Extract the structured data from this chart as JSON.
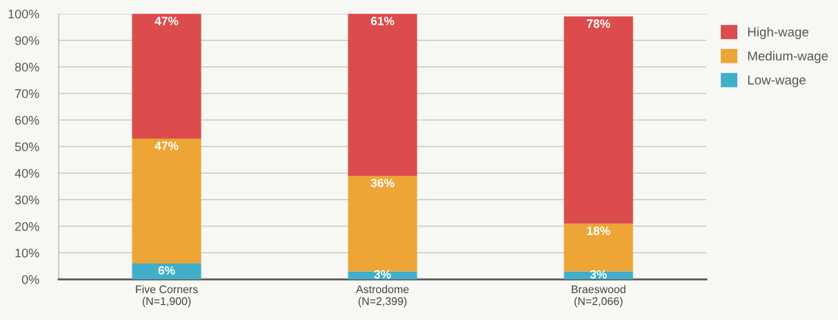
{
  "chart_data": {
    "type": "bar",
    "stacked": true,
    "categories": [
      "Five Corners\n(N=1,900)",
      "Astrodome\n(N=2,399)",
      "Braeswood\n(N=2,066)"
    ],
    "series": [
      {
        "name": "Low-wage",
        "color": "#41afc9",
        "values": [
          6,
          3,
          3
        ],
        "value_labels": [
          "6%",
          "3%",
          "3%"
        ]
      },
      {
        "name": "Medium-wage",
        "color": "#eda536",
        "values": [
          47,
          36,
          18
        ],
        "value_labels": [
          "47%",
          "36%",
          "18%"
        ]
      },
      {
        "name": "High-wage",
        "color": "#dc4c4c",
        "values": [
          47,
          61,
          78
        ],
        "value_labels": [
          "47%",
          "61%",
          "78%"
        ]
      }
    ],
    "ylim": [
      0,
      100
    ],
    "yticks": [
      {
        "value": 0,
        "label": "0%"
      },
      {
        "value": 10,
        "label": "10%"
      },
      {
        "value": 20,
        "label": "20%"
      },
      {
        "value": 30,
        "label": "30%"
      },
      {
        "value": 40,
        "label": "40%"
      },
      {
        "value": 50,
        "label": "50%"
      },
      {
        "value": 60,
        "label": "60%"
      },
      {
        "value": 70,
        "label": "70%"
      },
      {
        "value": 80,
        "label": "80%"
      },
      {
        "value": 90,
        "label": "90%"
      },
      {
        "value": 100,
        "label": "100%"
      }
    ],
    "grid": "y",
    "legend": "top right"
  }
}
